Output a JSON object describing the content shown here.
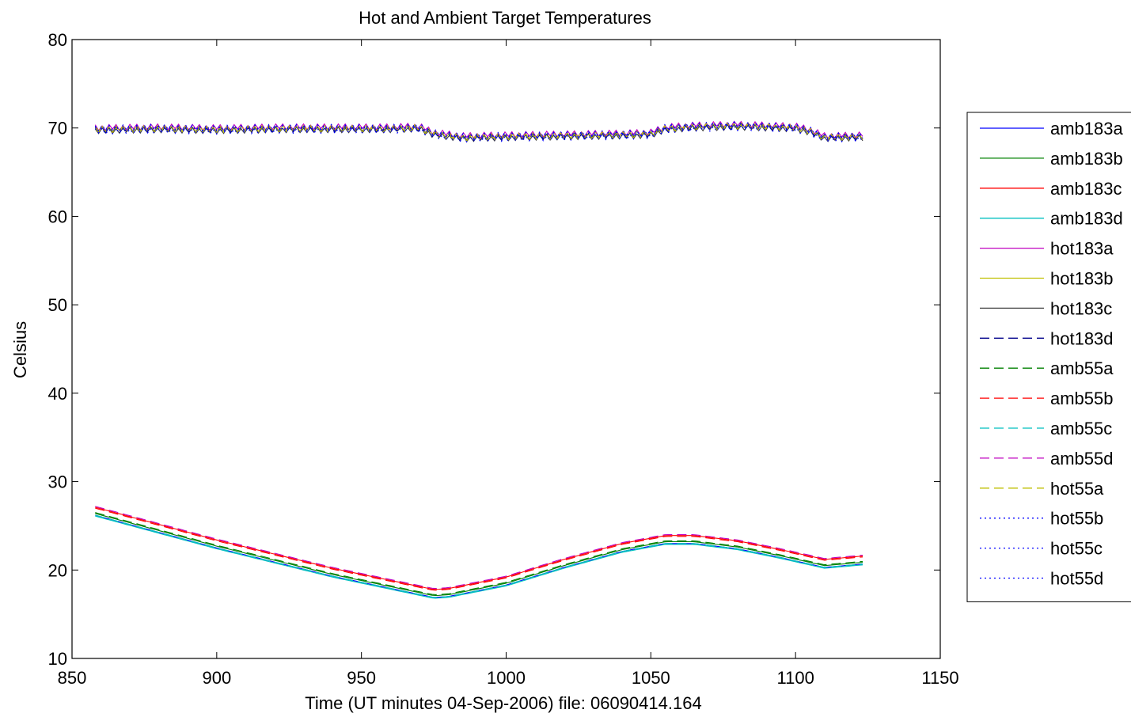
{
  "chart_data": {
    "type": "line",
    "title": "Hot and Ambient Target Temperatures",
    "xlabel": "Time (UT minutes 04-Sep-2006) file: 06090414.164",
    "ylabel": "Celsius",
    "xlim": [
      850,
      1150
    ],
    "ylim": [
      10,
      80
    ],
    "xticks": [
      850,
      900,
      950,
      1000,
      1050,
      1100,
      1150
    ],
    "yticks": [
      10,
      20,
      30,
      40,
      50,
      60,
      70,
      80
    ],
    "grid": false,
    "legend_position": "outside-right",
    "hot_profile": {
      "x": [
        858,
        880,
        900,
        920,
        940,
        960,
        970,
        975,
        985,
        1000,
        1020,
        1040,
        1050,
        1055,
        1065,
        1080,
        1100,
        1105,
        1110,
        1124
      ],
      "y": [
        69.8,
        69.9,
        69.8,
        69.9,
        69.9,
        69.9,
        70.0,
        69.3,
        68.9,
        69.0,
        69.1,
        69.2,
        69.3,
        69.9,
        70.1,
        70.2,
        70.0,
        69.6,
        68.9,
        69.0
      ]
    },
    "series": [
      {
        "name": "amb183a",
        "color": "#0000ff",
        "style": "solid",
        "group": "amb",
        "offset": -0.5
      },
      {
        "name": "amb183b",
        "color": "#008000",
        "style": "solid",
        "group": "amb",
        "offset": -0.3
      },
      {
        "name": "amb183c",
        "color": "#ff0000",
        "style": "solid",
        "group": "amb",
        "offset": 0.4
      },
      {
        "name": "amb183d",
        "color": "#00bfbf",
        "style": "solid",
        "group": "amb",
        "offset": -0.6
      },
      {
        "name": "hot183a",
        "color": "#bf00bf",
        "style": "solid",
        "group": "hot",
        "offset": 0.4
      },
      {
        "name": "hot183b",
        "color": "#bfbf00",
        "style": "solid",
        "group": "hot",
        "offset": 0.1
      },
      {
        "name": "hot183c",
        "color": "#404040",
        "style": "solid",
        "group": "hot",
        "offset": -0.2
      },
      {
        "name": "hot183d",
        "color": "#00008b",
        "style": "dashed",
        "group": "hot",
        "offset": -0.1
      },
      {
        "name": "amb55a",
        "color": "#008000",
        "style": "dashed",
        "group": "amb",
        "offset": -0.2
      },
      {
        "name": "amb55b",
        "color": "#ff0000",
        "style": "dashed",
        "group": "amb",
        "offset": 0.3
      },
      {
        "name": "amb55c",
        "color": "#00bfbf",
        "style": "dashed",
        "group": "amb",
        "offset": -0.5
      },
      {
        "name": "amb55d",
        "color": "#bf00bf",
        "style": "dashed",
        "group": "amb",
        "offset": 0.5
      },
      {
        "name": "hot55a",
        "color": "#bfbf00",
        "style": "dashed",
        "group": "hot",
        "offset": 0.0
      },
      {
        "name": "hot55b",
        "color": "#0000ff",
        "style": "dotted",
        "group": "hot",
        "offset": 0.2
      },
      {
        "name": "hot55c",
        "color": "#0000ff",
        "style": "dotted",
        "group": "hot",
        "offset": -0.3
      },
      {
        "name": "hot55d",
        "color": "#0000ff",
        "style": "dotted",
        "group": "hot",
        "offset": 0.3
      }
    ],
    "amb_profile": {
      "x": [
        858,
        900,
        940,
        975,
        980,
        1000,
        1020,
        1040,
        1055,
        1065,
        1080,
        1095,
        1110,
        1124
      ],
      "y": [
        26.7,
        23.0,
        19.8,
        17.4,
        17.5,
        18.8,
        20.8,
        22.6,
        23.5,
        23.5,
        22.9,
        21.9,
        20.8,
        21.2
      ]
    }
  }
}
